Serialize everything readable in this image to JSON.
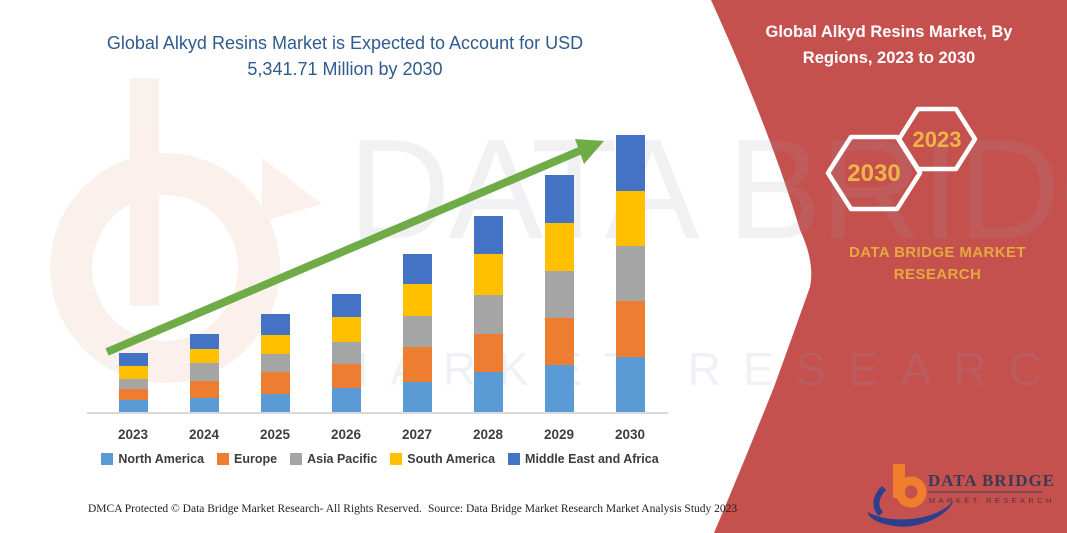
{
  "title": {
    "text": "Global Alkyd Resins Market is Expected to Account for USD 5,341.71 Million by 2030",
    "color": "#2F5B8E"
  },
  "side_panel": {
    "heading": "Global Alkyd Resins Market, By Regions, 2023 to 2030",
    "hexagons": [
      {
        "label": "2030"
      },
      {
        "label": "2023"
      }
    ],
    "brand": "DATA BRIDGE MARKET RESEARCH",
    "panel_color": "#C5514F",
    "accent_gold": "#EFB347",
    "heading_color": "#FFFFFF"
  },
  "watermark": {
    "line1": "DATA BRIDGE",
    "line2": "MARKET RESEARCH"
  },
  "logo": {
    "name": "DATA BRIDGE",
    "sub": "MARKET RESEARCH"
  },
  "footer": {
    "left": "DMCA Protected © Data Bridge Market Research-  All Rights Reserved.",
    "right": "Source: Data Bridge Market Research  Market Analysis Study 2023"
  },
  "chart_data": {
    "type": "bar",
    "stacked": true,
    "unit": "USD Million",
    "values_estimated": true,
    "annotation_total_2030": "USD 5,341.71 Million",
    "categories": [
      "2023",
      "2024",
      "2025",
      "2026",
      "2027",
      "2028",
      "2029",
      "2030"
    ],
    "series": [
      {
        "name": "North America",
        "color": "#5B9BD5",
        "values": [
          225,
          276,
          353,
          462,
          589,
          771,
          911,
          1060
        ]
      },
      {
        "name": "Europe",
        "color": "#ED7D31",
        "values": [
          212,
          322,
          418,
          468,
          663,
          738,
          905,
          1090
        ]
      },
      {
        "name": "Asia Pacific",
        "color": "#A5A5A5",
        "values": [
          206,
          354,
          353,
          418,
          597,
          738,
          911,
          1060
        ]
      },
      {
        "name": "South America",
        "color": "#FFC000",
        "values": [
          243,
          256,
          353,
          482,
          622,
          803,
          919,
          1060
        ]
      },
      {
        "name": "Middle East and Africa",
        "color": "#4472C4",
        "values": [
          258,
          302,
          418,
          449,
          578,
          738,
          925,
          1071.71
        ]
      }
    ],
    "totals_estimated": [
      1144,
      1510,
      1895,
      2279,
      3049,
      3788,
      4571,
      5341.71
    ],
    "ylabel": "",
    "xlabel": "",
    "grid": false,
    "legend_position": "bottom",
    "trend_arrow": true,
    "trend_arrow_color": "#6FAC47"
  }
}
